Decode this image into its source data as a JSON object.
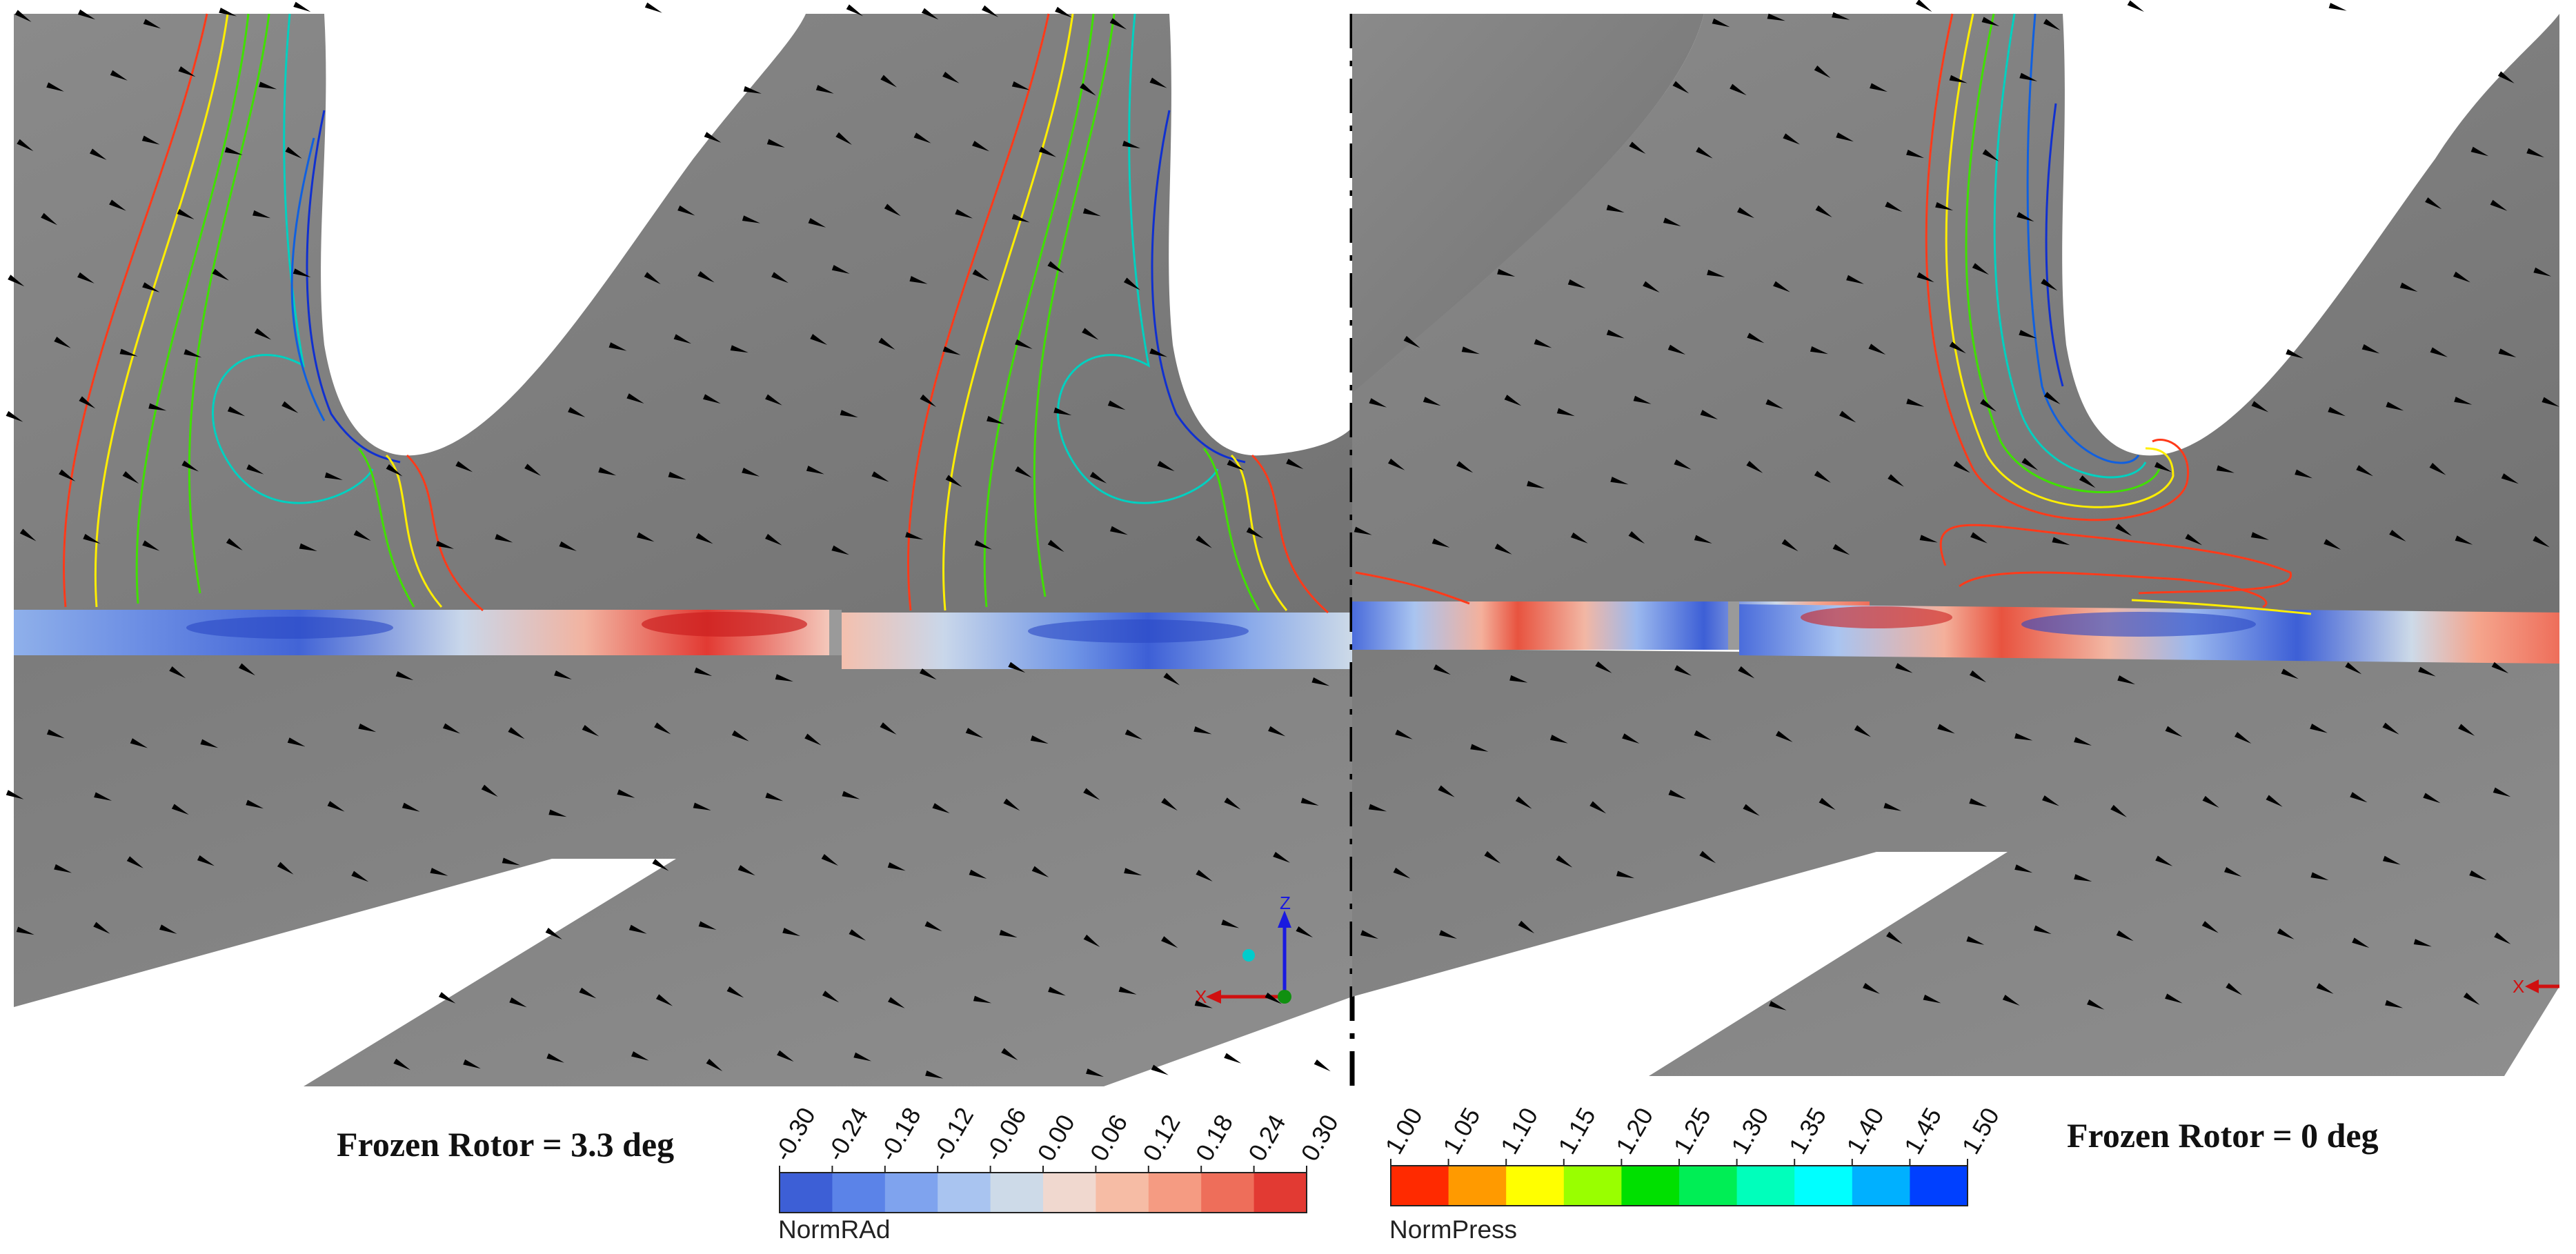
{
  "panels": [
    {
      "caption": "Frozen Rotor = 3.3 deg"
    },
    {
      "caption": "Frozen Rotor = 0 deg"
    }
  ],
  "colorbars": [
    {
      "title": "NormRAd",
      "ticks": [
        "-0.30",
        "-0.24",
        "-0.18",
        "-0.12",
        "-0.06",
        "0.00",
        "0.06",
        "0.12",
        "0.18",
        "0.24",
        "0.30"
      ],
      "colors": [
        "#3d5fd6",
        "#5b83e8",
        "#7fa3ee",
        "#a9c4f0",
        "#cddae8",
        "#f0d8cf",
        "#f6bca5",
        "#f59b82",
        "#ee6e5a",
        "#e23a33"
      ]
    },
    {
      "title": "NormPress",
      "ticks": [
        "1.00",
        "1.05",
        "1.10",
        "1.15",
        "1.20",
        "1.25",
        "1.30",
        "1.35",
        "1.40",
        "1.45",
        "1.50"
      ],
      "colors": [
        "#ff2a00",
        "#ff9a00",
        "#ffff00",
        "#99ff00",
        "#00e000",
        "#00ee55",
        "#00ffbb",
        "#00ffff",
        "#00b0ff",
        "#0040ff"
      ]
    }
  ],
  "axis_triad": {
    "x": "X",
    "z": "Z"
  },
  "colors": {
    "background": "#808080",
    "axis_x": "#d01010",
    "axis_z": "#1a1ae0",
    "axis_y": "#109010"
  }
}
